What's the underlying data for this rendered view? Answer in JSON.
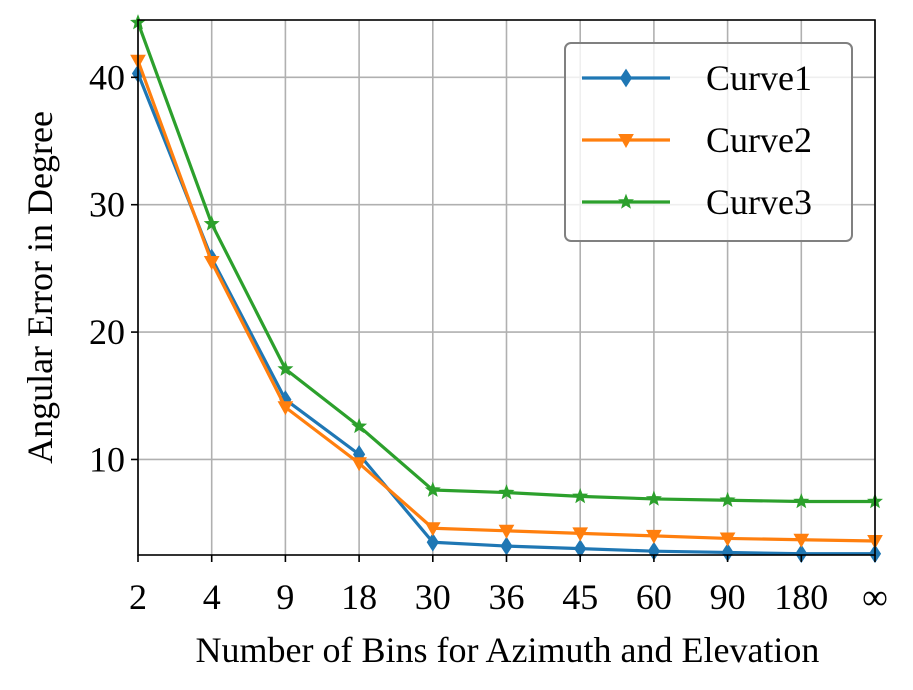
{
  "chart_data": {
    "type": "line",
    "title": "",
    "xlabel": "Number of Bins for Azimuth and Elevation",
    "ylabel": "Angular Error in Degree",
    "categories": [
      "2",
      "4",
      "9",
      "18",
      "30",
      "36",
      "45",
      "60",
      "90",
      "180",
      "∞"
    ],
    "ylim": [
      2.5,
      44.5
    ],
    "yticks": [
      10,
      20,
      30,
      40
    ],
    "grid": true,
    "legend_position": "top-right",
    "series": [
      {
        "name": "Curve1",
        "color": "#1f77b4",
        "marker": "thin-diamond",
        "values": [
          40.3,
          25.8,
          14.7,
          10.4,
          3.5,
          3.2,
          3.0,
          2.8,
          2.7,
          2.6,
          2.6
        ]
      },
      {
        "name": "Curve2",
        "color": "#ff7f0e",
        "marker": "triangle-down",
        "values": [
          41.3,
          25.5,
          14.1,
          9.7,
          4.6,
          4.4,
          4.2,
          4.0,
          3.8,
          3.7,
          3.6
        ]
      },
      {
        "name": "Curve3",
        "color": "#2ca02c",
        "marker": "star",
        "values": [
          44.3,
          28.5,
          17.1,
          12.6,
          7.6,
          7.4,
          7.1,
          6.9,
          6.8,
          6.7,
          6.7
        ]
      }
    ]
  }
}
